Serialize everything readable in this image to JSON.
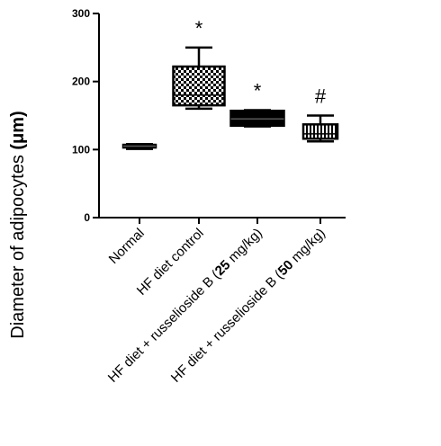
{
  "chart_data": {
    "type": "box",
    "title": "",
    "ylabel": "Diameter of adipocytes",
    "ylabel_unit": "(μm)",
    "xlabel": "",
    "ylim": [
      0,
      300
    ],
    "yticks": [
      0,
      100,
      200,
      300
    ],
    "grid": false,
    "legend": "none",
    "categories": [
      {
        "label_parts": [
          "Normal"
        ],
        "bold_index": -1,
        "min": 101,
        "q1": 103,
        "median": 105,
        "q3": 107,
        "max": 108,
        "annotation": "",
        "pattern": "solid"
      },
      {
        "label_parts": [
          "HF diet control"
        ],
        "bold_index": -1,
        "min": 160,
        "q1": 165,
        "median": 180,
        "q3": 222,
        "max": 250,
        "annotation": "*",
        "pattern": "checker"
      },
      {
        "label_parts": [
          "HF diet + russelioside B (",
          "25",
          " mg/kg)"
        ],
        "bold_index": 1,
        "min": 134,
        "q1": 135,
        "median": 145,
        "q3": 157,
        "max": 158,
        "annotation": "*",
        "pattern": "solid"
      },
      {
        "label_parts": [
          "HF diet + russelioside B (",
          "50",
          " mg/kg)"
        ],
        "bold_index": 1,
        "min": 112,
        "q1": 116,
        "median": 123,
        "q3": 137,
        "max": 150,
        "annotation": "#",
        "pattern": "stripes"
      }
    ]
  },
  "colors": {
    "ink": "#000000",
    "background": "#ffffff"
  }
}
